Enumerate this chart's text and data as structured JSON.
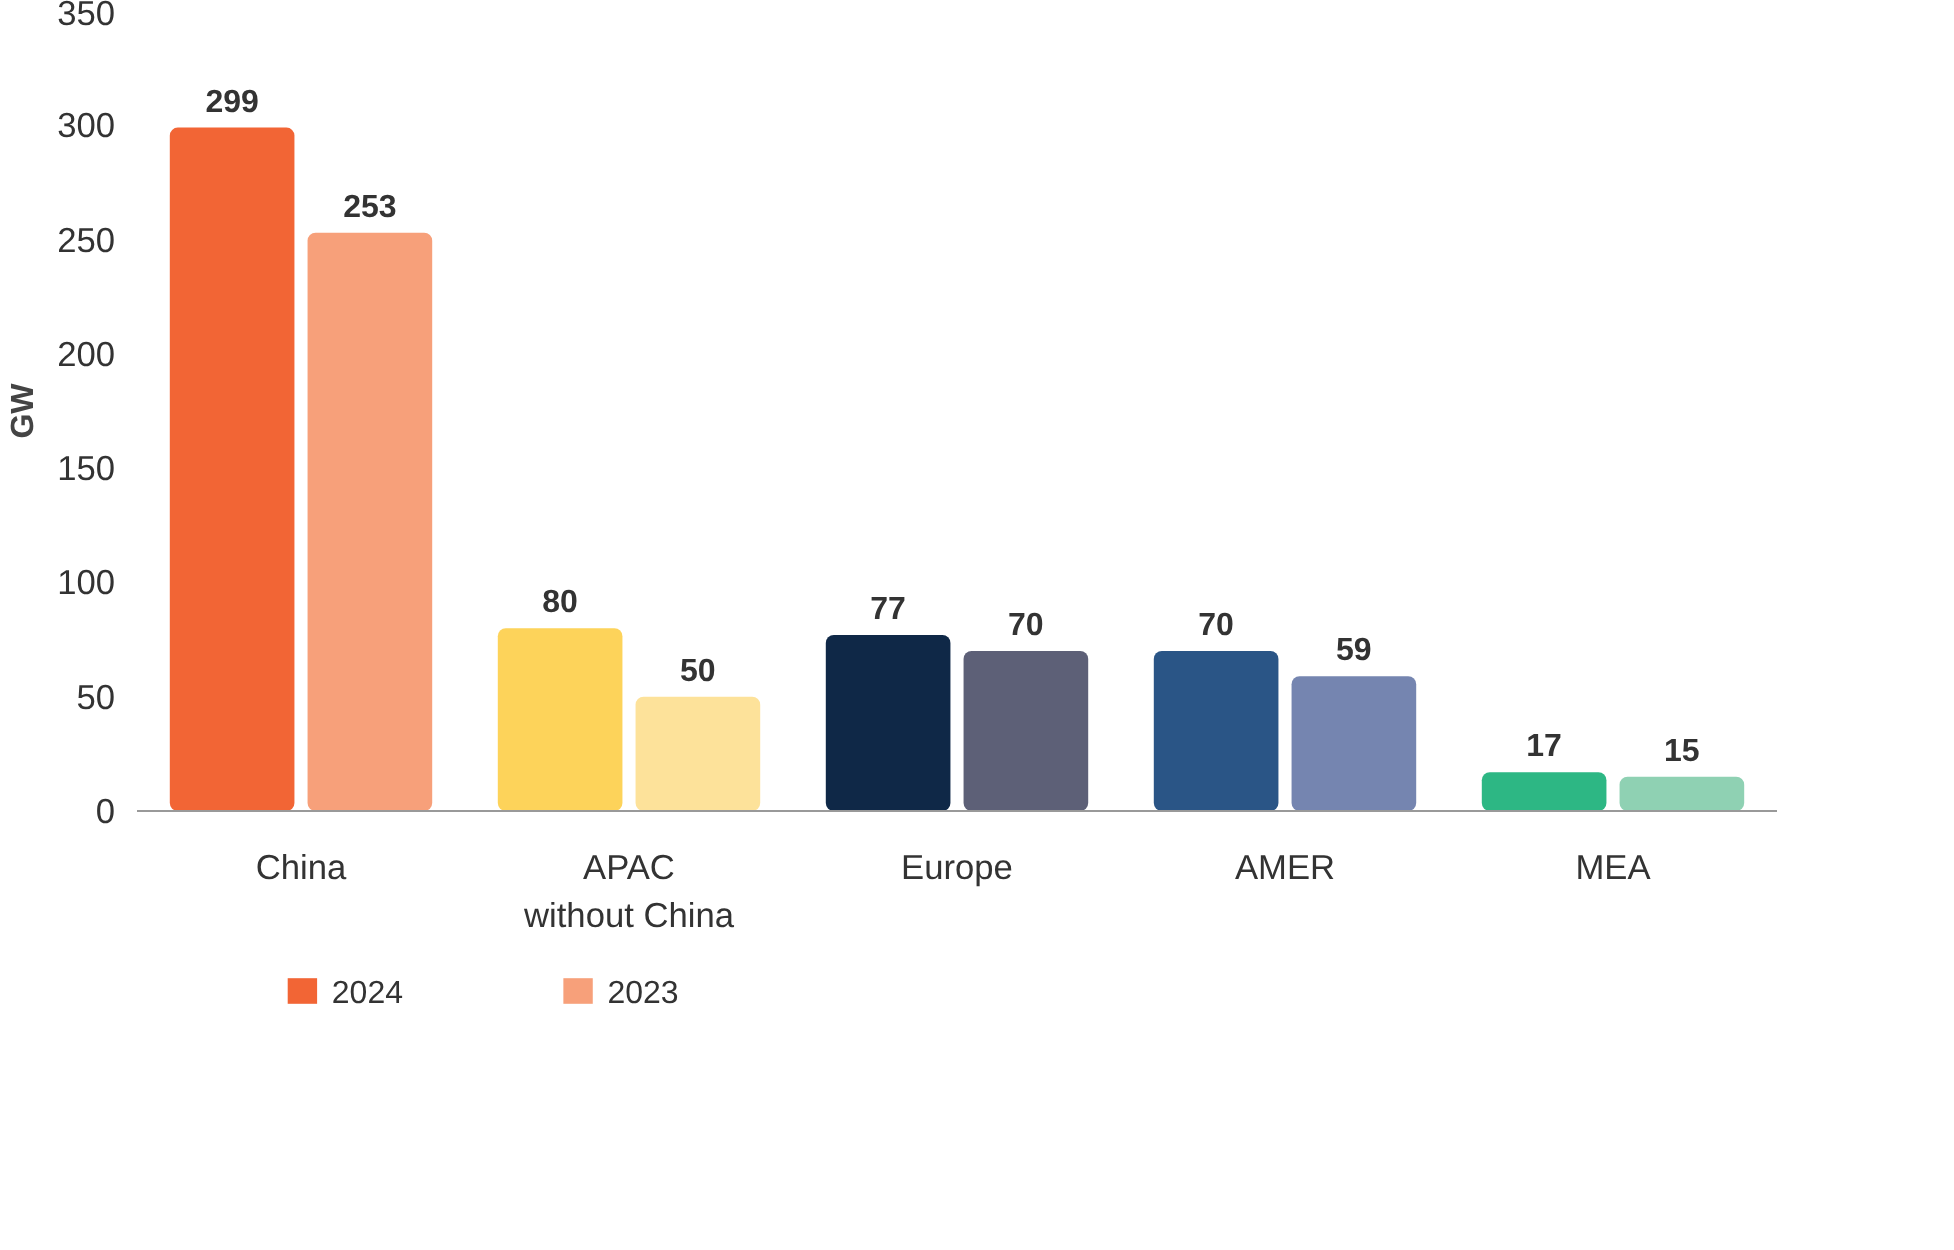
{
  "chart_data": {
    "type": "bar",
    "ylabel": "GW",
    "categories": [
      "China",
      "APAC\nwithout China",
      "Europe",
      "AMER",
      "MEA"
    ],
    "series": [
      {
        "name": "2024",
        "color": "#f26535",
        "colors": [
          "#f26535",
          "#fdd35a",
          "#0f2847",
          "#2a5586",
          "#2db784"
        ],
        "values": [
          299,
          80,
          77,
          70,
          17
        ]
      },
      {
        "name": "2023",
        "color": "#f7a07a",
        "colors": [
          "#f7a07a",
          "#fde29a",
          "#5d6077",
          "#7585b0",
          "#8fd1b3"
        ],
        "values": [
          253,
          50,
          70,
          59,
          15
        ]
      }
    ],
    "ylim": [
      0,
      350
    ],
    "yticks": [
      0,
      50,
      100,
      150,
      200,
      250,
      300,
      350
    ],
    "grid": false,
    "legend": "bottom left",
    "data_labels": true
  }
}
